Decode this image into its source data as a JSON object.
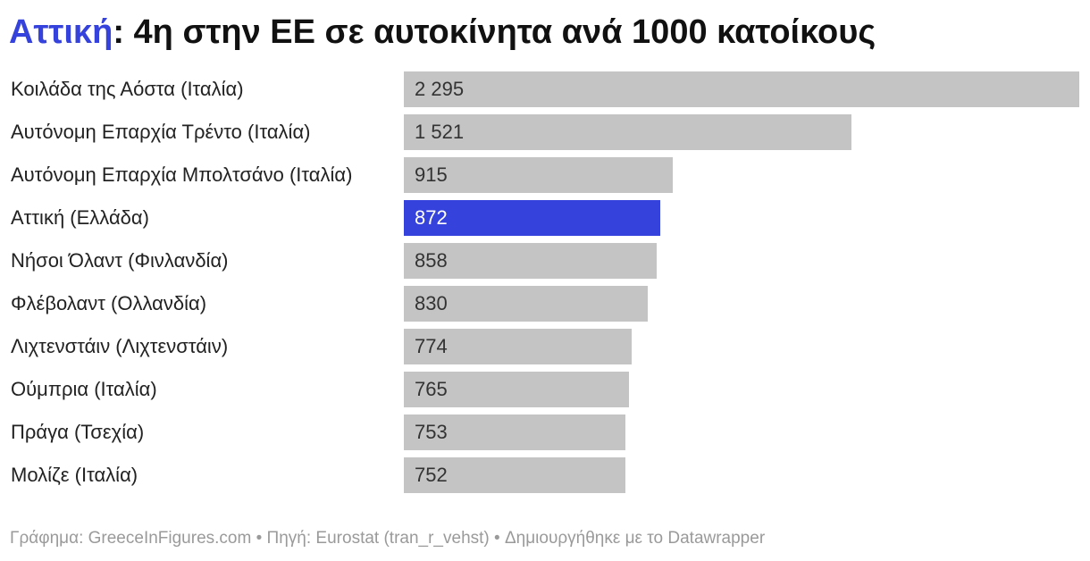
{
  "header": {
    "title_highlight": "Αττική",
    "title_rest": ": 4η στην ΕΕ σε αυτοκίνητα ανά 1000 κατοίκους"
  },
  "footer": {
    "text": "Γράφημα: GreeceInFigures.com • Πηγή: Eurostat (tran_r_vehst) • Δημιουργήθηκε με το Datawrapper"
  },
  "colors": {
    "bar_default": "#c4c4c4",
    "bar_highlight": "#3542db",
    "title_highlight": "#3542db"
  },
  "chart_data": {
    "type": "bar",
    "orientation": "horizontal",
    "highlight_index": 3,
    "categories": [
      "Κοιλάδα της Αόστα (Ιταλία)",
      "Αυτόνομη Επαρχία Τρέντο (Ιταλία)",
      "Αυτόνομη Επαρχία Μπολτσάνο (Ιταλία)",
      "Αττική (Ελλάδα)",
      "Νήσοι Όλαντ (Φινλανδία)",
      "Φλέβολαντ (Ολλανδία)",
      "Λιχτενστάιν (Λιχτενστάιν)",
      "Ούμπρια (Ιταλία)",
      "Πράγα (Τσεχία)",
      "Μολίζε (Ιταλία)"
    ],
    "values": [
      2295,
      1521,
      915,
      872,
      858,
      830,
      774,
      765,
      753,
      752
    ],
    "value_labels": [
      "2 295",
      "1 521",
      "915",
      "872",
      "858",
      "830",
      "774",
      "765",
      "753",
      "752"
    ],
    "xlim": [
      0,
      2295
    ]
  }
}
